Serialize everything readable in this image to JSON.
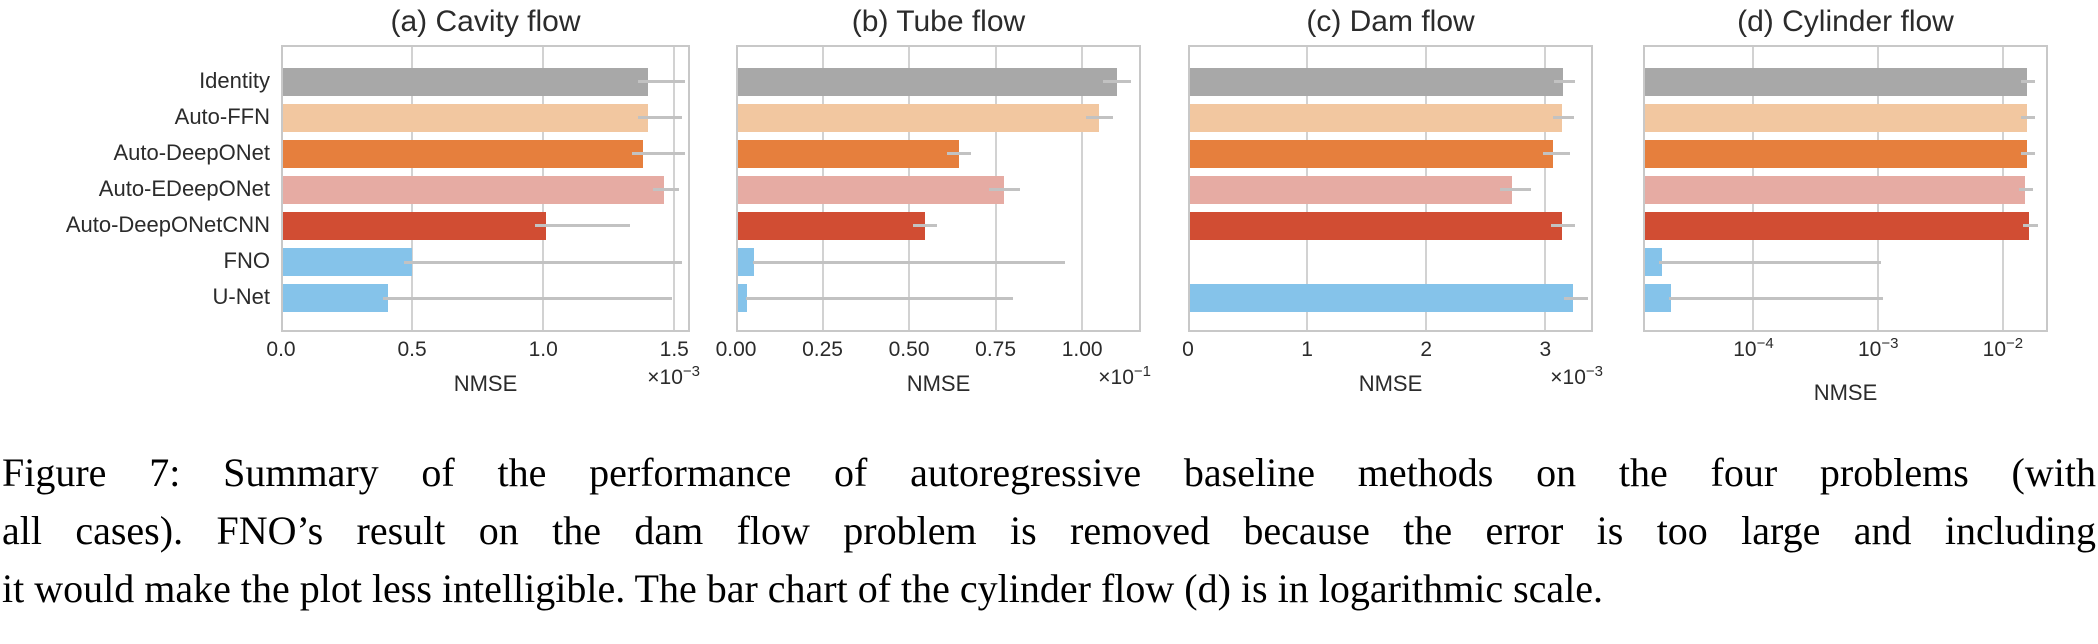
{
  "caption": {
    "lines": [
      "Figure 7: Summary of the performance of autoregressive baseline methods on the four problems (with",
      "all cases). FNO’s result on the dam flow problem is removed because the error is too large and including",
      "it would make the plot less intelligible. The bar chart of the cylinder flow (d) is in logarithmic scale."
    ]
  },
  "colors": {
    "bar_gray": "#a8a8a8",
    "bar_peach": "#f2c7a0",
    "bar_orange": "#e67f3d",
    "bar_salmon": "#e6aba3",
    "bar_red": "#d14d33",
    "bar_blue": "#85c3ea",
    "grid": "#d2d2d2",
    "spine": "#c8c8c8",
    "error_bar": "#c2c2c2",
    "text": "#2b2b2b"
  },
  "bar_color_keys": [
    "bar_gray",
    "bar_peach",
    "bar_orange",
    "bar_salmon",
    "bar_red",
    "bar_blue",
    "bar_blue"
  ],
  "chart_data": [
    {
      "id": "cavity-flow",
      "type": "bar",
      "orientation": "horizontal",
      "title": "(a) Cavity flow",
      "xlabel": "NMSE",
      "offset_text": "×10^−3",
      "value_unit": "1e-3",
      "grid": true,
      "axis": {
        "scale": "linear",
        "min": 0,
        "max": 1.56,
        "ticks": [
          {
            "v": 0.0,
            "label": "0.0"
          },
          {
            "v": 0.5,
            "label": "0.5"
          },
          {
            "v": 1.0,
            "label": "1.0"
          },
          {
            "v": 1.5,
            "label": "1.5"
          }
        ]
      },
      "categories": [
        "Identity",
        "Auto-FFN",
        "Auto-DeepONet",
        "Auto-EDeepONet",
        "Auto-DeepONetCNN",
        "FNO",
        "U-Net"
      ],
      "values": [
        1.4,
        1.4,
        1.38,
        1.46,
        1.01,
        0.5,
        0.41
      ],
      "errors": [
        [
          1.36,
          1.54
        ],
        [
          1.36,
          1.53
        ],
        [
          1.34,
          1.54
        ],
        [
          1.42,
          1.52
        ],
        [
          0.97,
          1.33
        ],
        [
          0.47,
          1.53
        ],
        [
          0.39,
          1.49
        ]
      ]
    },
    {
      "id": "tube-flow",
      "type": "bar",
      "orientation": "horizontal",
      "title": "(b) Tube flow",
      "xlabel": "NMSE",
      "offset_text": "×10^−1",
      "value_unit": "1e-1",
      "grid": true,
      "axis": {
        "scale": "linear",
        "min": 0,
        "max": 1.17,
        "ticks": [
          {
            "v": 0.0,
            "label": "0.00"
          },
          {
            "v": 0.25,
            "label": "0.25"
          },
          {
            "v": 0.5,
            "label": "0.50"
          },
          {
            "v": 0.75,
            "label": "0.75"
          },
          {
            "v": 1.0,
            "label": "1.00"
          }
        ]
      },
      "categories": [
        "Identity",
        "Auto-FFN",
        "Auto-DeepONet",
        "Auto-EDeepONet",
        "Auto-DeepONetCNN",
        "FNO",
        "U-Net"
      ],
      "values": [
        1.1,
        1.05,
        0.645,
        0.775,
        0.545,
        0.052,
        0.032
      ],
      "errors": [
        [
          1.06,
          1.14
        ],
        [
          1.01,
          1.09
        ],
        [
          0.61,
          0.68
        ],
        [
          0.73,
          0.82
        ],
        [
          0.51,
          0.58
        ],
        [
          0.048,
          0.95
        ],
        [
          0.028,
          0.8
        ]
      ]
    },
    {
      "id": "dam-flow",
      "type": "bar",
      "orientation": "horizontal",
      "title": "(c) Dam flow",
      "xlabel": "NMSE",
      "offset_text": "×10^−3",
      "value_unit": "1e-3",
      "grid": true,
      "note": "FNO bar removed (error too large)",
      "axis": {
        "scale": "linear",
        "min": 0,
        "max": 3.4,
        "ticks": [
          {
            "v": 0,
            "label": "0"
          },
          {
            "v": 1,
            "label": "1"
          },
          {
            "v": 2,
            "label": "2"
          },
          {
            "v": 3,
            "label": "3"
          }
        ]
      },
      "categories": [
        "Identity",
        "Auto-FFN",
        "Auto-DeepONet",
        "Auto-EDeepONet",
        "Auto-DeepONetCNN",
        "FNO",
        "U-Net"
      ],
      "values": [
        3.15,
        3.14,
        3.06,
        2.72,
        3.14,
        null,
        3.23
      ],
      "errors": [
        [
          3.07,
          3.25
        ],
        [
          3.06,
          3.24
        ],
        [
          2.98,
          3.21
        ],
        [
          2.62,
          2.88
        ],
        [
          3.05,
          3.25
        ],
        null,
        [
          3.16,
          3.36
        ]
      ]
    },
    {
      "id": "cylinder-flow",
      "type": "bar",
      "orientation": "horizontal",
      "title": "(d) Cylinder flow",
      "xlabel": "NMSE",
      "offset_text": null,
      "value_unit": "absolute",
      "grid": true,
      "note": "logarithmic x scale",
      "axis": {
        "scale": "log",
        "min": 1.3e-05,
        "max": 0.023,
        "ticks": [
          {
            "v": 0.0001,
            "label": "10^−4"
          },
          {
            "v": 0.001,
            "label": "10^−3"
          },
          {
            "v": 0.01,
            "label": "10^−2"
          }
        ]
      },
      "categories": [
        "Identity",
        "Auto-FFN",
        "Auto-DeepONet",
        "Auto-EDeepONet",
        "Auto-DeepONetCNN",
        "FNO",
        "U-Net"
      ],
      "values": [
        0.0155,
        0.0155,
        0.0155,
        0.015,
        0.0162,
        1.85e-05,
        2.2e-05
      ],
      "errors": [
        [
          0.014,
          0.018
        ],
        [
          0.014,
          0.018
        ],
        [
          0.014,
          0.018
        ],
        [
          0.0135,
          0.0175
        ],
        [
          0.0145,
          0.019
        ],
        [
          1.75e-05,
          0.00105
        ],
        [
          2.1e-05,
          0.0011
        ]
      ]
    }
  ]
}
